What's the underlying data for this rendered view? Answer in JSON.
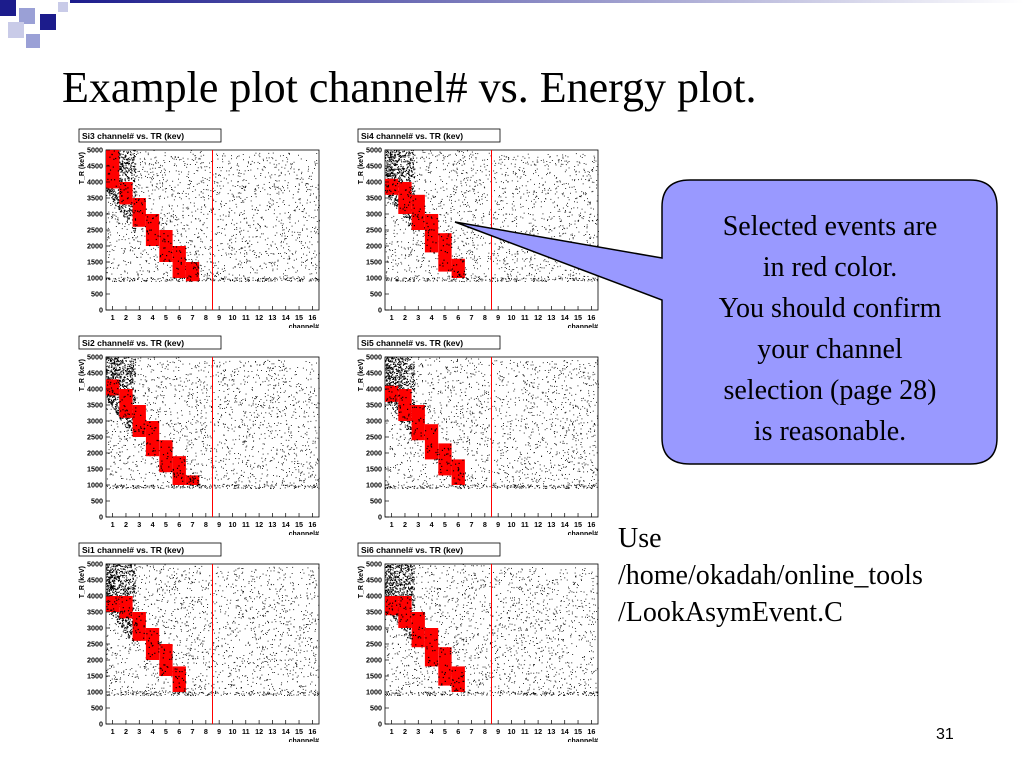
{
  "slide": {
    "title": "Example plot channel# vs. Energy plot.",
    "page_number": "31",
    "colors": {
      "accent_dark": "#1c1c8c",
      "accent_light": "#9aa0d6",
      "callout_fill": "#9999ff",
      "selected": "#ff0000",
      "events": "#000000"
    }
  },
  "callout": {
    "lines": [
      "Selected events are",
      "in red color.",
      "You should confirm",
      "your channel",
      "selection (page 28)",
      "is reasonable."
    ]
  },
  "usage": {
    "lines": [
      "Use",
      "/home/okadah/online_tools",
      "/LookAsymEvent.C"
    ]
  },
  "chart_data": [
    {
      "type": "scatter",
      "title": "Si3 channel# vs. TR (kev)",
      "xlabel": "channel#",
      "ylabel": "T_R (keV)",
      "xlim": [
        0.5,
        16.5
      ],
      "ylim": [
        0,
        5000
      ],
      "x_ticks": [
        "1",
        "2",
        "3",
        "4",
        "5",
        "6",
        "7",
        "8",
        "9",
        "10",
        "11",
        "12",
        "13",
        "14",
        "15",
        "16"
      ],
      "y_ticks": [
        "0",
        "500",
        "1000",
        "1500",
        "2000",
        "2500",
        "3000",
        "3500",
        "4000",
        "4500",
        "5000"
      ],
      "cut_line_x": 8.5,
      "selected_bands": [
        {
          "channel": 1,
          "tr_min": 3800,
          "tr_max": 5000
        },
        {
          "channel": 2,
          "tr_min": 3300,
          "tr_max": 4000
        },
        {
          "channel": 3,
          "tr_min": 2600,
          "tr_max": 3500
        },
        {
          "channel": 4,
          "tr_min": 2000,
          "tr_max": 3000
        },
        {
          "channel": 5,
          "tr_min": 1500,
          "tr_max": 2500
        },
        {
          "channel": 6,
          "tr_min": 1000,
          "tr_max": 2000
        },
        {
          "channel": 7,
          "tr_min": 900,
          "tr_max": 1500
        }
      ],
      "grid": false,
      "legend": "none"
    },
    {
      "type": "scatter",
      "title": "Si4 channel# vs. TR (kev)",
      "xlabel": "channel#",
      "ylabel": "T_R (keV)",
      "xlim": [
        0.5,
        16.5
      ],
      "ylim": [
        0,
        5000
      ],
      "x_ticks": [
        "1",
        "2",
        "3",
        "4",
        "5",
        "6",
        "7",
        "8",
        "9",
        "10",
        "11",
        "12",
        "13",
        "14",
        "15",
        "16"
      ],
      "y_ticks": [
        "0",
        "500",
        "1000",
        "1500",
        "2000",
        "2500",
        "3000",
        "3500",
        "4000",
        "4500",
        "5000"
      ],
      "cut_line_x": 8.5,
      "selected_bands": [
        {
          "channel": 1,
          "tr_min": 3600,
          "tr_max": 4100
        },
        {
          "channel": 2,
          "tr_min": 3000,
          "tr_max": 4000
        },
        {
          "channel": 3,
          "tr_min": 2500,
          "tr_max": 3600
        },
        {
          "channel": 4,
          "tr_min": 1800,
          "tr_max": 3000
        },
        {
          "channel": 5,
          "tr_min": 1200,
          "tr_max": 2400
        },
        {
          "channel": 6,
          "tr_min": 1000,
          "tr_max": 1600
        }
      ],
      "grid": false,
      "legend": "none"
    },
    {
      "type": "scatter",
      "title": "Si2 channel# vs. TR (kev)",
      "xlabel": "channel#",
      "ylabel": "T_R (keV)",
      "xlim": [
        0.5,
        16.5
      ],
      "ylim": [
        0,
        5000
      ],
      "x_ticks": [
        "1",
        "2",
        "3",
        "4",
        "5",
        "6",
        "7",
        "8",
        "9",
        "10",
        "11",
        "12",
        "13",
        "14",
        "15",
        "16"
      ],
      "y_ticks": [
        "0",
        "500",
        "1000",
        "1500",
        "2000",
        "2500",
        "3000",
        "3500",
        "4000",
        "4500",
        "5000"
      ],
      "cut_line_x": 8.5,
      "selected_bands": [
        {
          "channel": 1,
          "tr_min": 3800,
          "tr_max": 4300
        },
        {
          "channel": 2,
          "tr_min": 3100,
          "tr_max": 4000
        },
        {
          "channel": 3,
          "tr_min": 2500,
          "tr_max": 3500
        },
        {
          "channel": 4,
          "tr_min": 1900,
          "tr_max": 3000
        },
        {
          "channel": 5,
          "tr_min": 1400,
          "tr_max": 2400
        },
        {
          "channel": 6,
          "tr_min": 1000,
          "tr_max": 1900
        },
        {
          "channel": 7,
          "tr_min": 1000,
          "tr_max": 1300
        }
      ],
      "grid": false,
      "legend": "none"
    },
    {
      "type": "scatter",
      "title": "Si5 channel# vs. TR (kev)",
      "xlabel": "channel#",
      "ylabel": "T_R (keV)",
      "xlim": [
        0.5,
        16.5
      ],
      "ylim": [
        0,
        5000
      ],
      "x_ticks": [
        "1",
        "2",
        "3",
        "4",
        "5",
        "6",
        "7",
        "8",
        "9",
        "10",
        "11",
        "12",
        "13",
        "14",
        "15",
        "16"
      ],
      "y_ticks": [
        "0",
        "500",
        "1000",
        "1500",
        "2000",
        "2500",
        "3000",
        "3500",
        "4000",
        "4500",
        "5000"
      ],
      "cut_line_x": 8.5,
      "selected_bands": [
        {
          "channel": 1,
          "tr_min": 3600,
          "tr_max": 4100
        },
        {
          "channel": 2,
          "tr_min": 3000,
          "tr_max": 4000
        },
        {
          "channel": 3,
          "tr_min": 2400,
          "tr_max": 3500
        },
        {
          "channel": 4,
          "tr_min": 1800,
          "tr_max": 2900
        },
        {
          "channel": 5,
          "tr_min": 1300,
          "tr_max": 2300
        },
        {
          "channel": 6,
          "tr_min": 1000,
          "tr_max": 1800
        }
      ],
      "grid": false,
      "legend": "none"
    },
    {
      "type": "scatter",
      "title": "Si1 channel# vs. TR (kev)",
      "xlabel": "channel#",
      "ylabel": "T_R (keV)",
      "xlim": [
        0.5,
        16.5
      ],
      "ylim": [
        0,
        5000
      ],
      "x_ticks": [
        "1",
        "2",
        "3",
        "4",
        "5",
        "6",
        "7",
        "8",
        "9",
        "10",
        "11",
        "12",
        "13",
        "14",
        "15",
        "16"
      ],
      "y_ticks": [
        "0",
        "500",
        "1000",
        "1500",
        "2000",
        "2500",
        "3000",
        "3500",
        "4000",
        "4500",
        "5000"
      ],
      "cut_line_x": 8.5,
      "selected_bands": [
        {
          "channel": 1,
          "tr_min": 3500,
          "tr_max": 4000
        },
        {
          "channel": 2,
          "tr_min": 3300,
          "tr_max": 4000
        },
        {
          "channel": 3,
          "tr_min": 2600,
          "tr_max": 3500
        },
        {
          "channel": 4,
          "tr_min": 2000,
          "tr_max": 3000
        },
        {
          "channel": 5,
          "tr_min": 1500,
          "tr_max": 2500
        },
        {
          "channel": 6,
          "tr_min": 1000,
          "tr_max": 1800
        }
      ],
      "grid": false,
      "legend": "none"
    },
    {
      "type": "scatter",
      "title": "Si6 channel# vs. TR (kev)",
      "xlabel": "channel#",
      "ylabel": "T_R (keV)",
      "xlim": [
        0.5,
        16.5
      ],
      "ylim": [
        0,
        5000
      ],
      "x_ticks": [
        "1",
        "2",
        "3",
        "4",
        "5",
        "6",
        "7",
        "8",
        "9",
        "10",
        "11",
        "12",
        "13",
        "14",
        "15",
        "16"
      ],
      "y_ticks": [
        "0",
        "500",
        "1000",
        "1500",
        "2000",
        "2500",
        "3000",
        "3500",
        "4000",
        "4500",
        "5000"
      ],
      "cut_line_x": 8.5,
      "selected_bands": [
        {
          "channel": 1,
          "tr_min": 3400,
          "tr_max": 4000
        },
        {
          "channel": 2,
          "tr_min": 3000,
          "tr_max": 4000
        },
        {
          "channel": 3,
          "tr_min": 2400,
          "tr_max": 3500
        },
        {
          "channel": 4,
          "tr_min": 1800,
          "tr_max": 3000
        },
        {
          "channel": 5,
          "tr_min": 1200,
          "tr_max": 2400
        },
        {
          "channel": 6,
          "tr_min": 1000,
          "tr_max": 1800
        }
      ],
      "grid": false,
      "legend": "none"
    }
  ]
}
